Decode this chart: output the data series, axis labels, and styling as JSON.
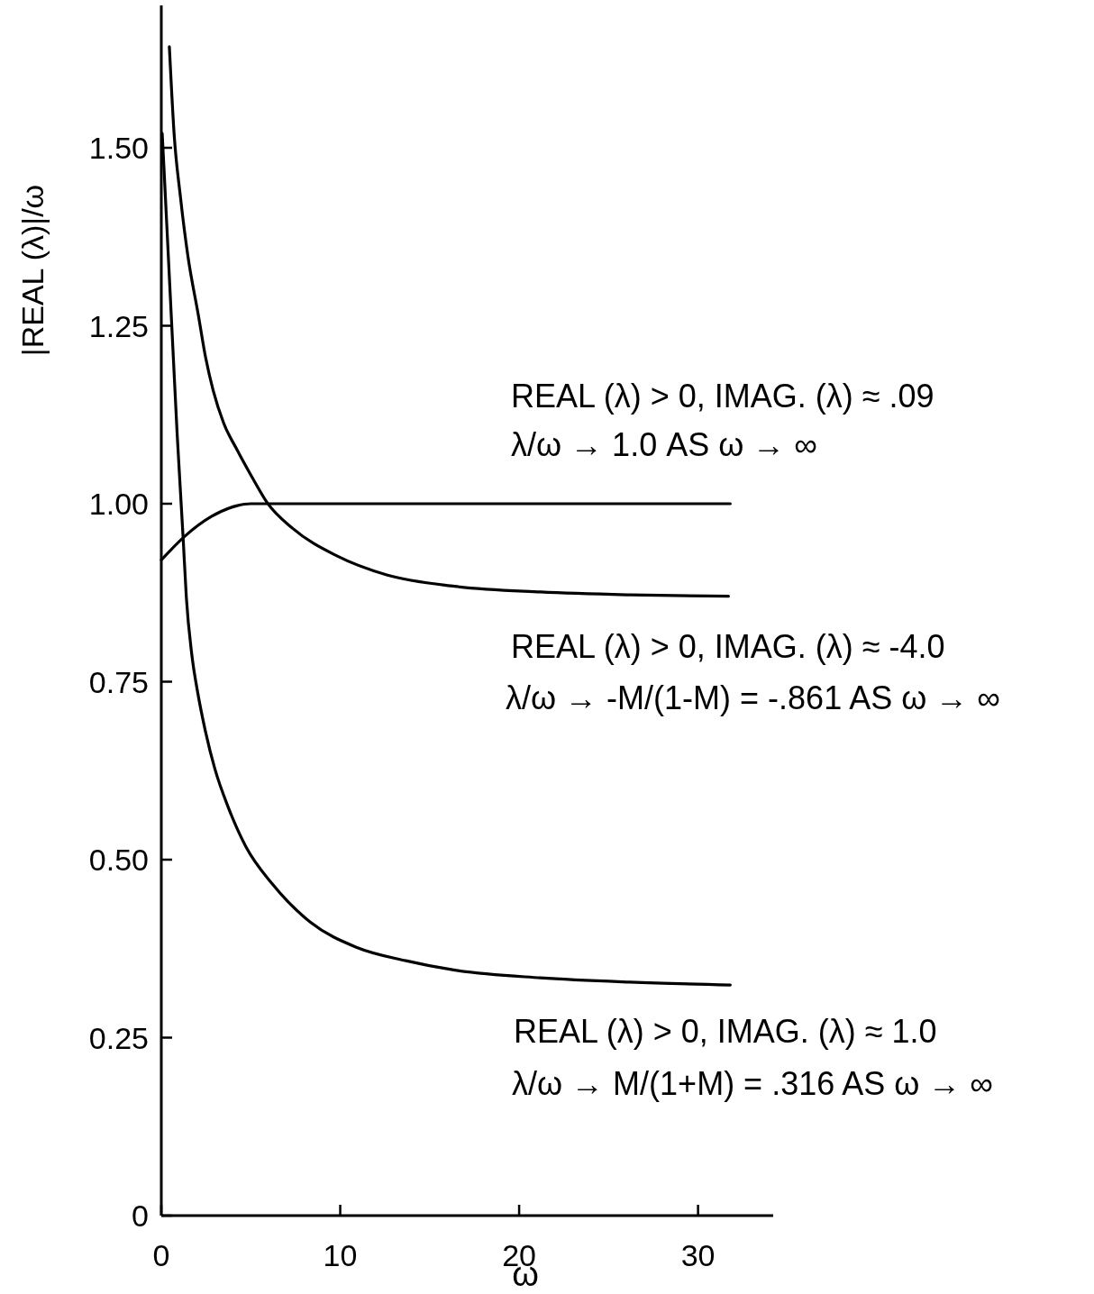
{
  "chart_data": {
    "type": "line",
    "xlabel": "ω",
    "ylabel": "|REAL (λ)|/ω",
    "xlim": [
      0,
      34.2
    ],
    "ylim": [
      0,
      1.7
    ],
    "xticks": [
      0,
      10,
      20,
      30
    ],
    "yticks": [
      0,
      0.25,
      {
        "value": 0.5,
        "label": "0.50"
      },
      0.75,
      {
        "value": 1,
        "label": "1.00"
      },
      1.25,
      {
        "value": 1.5,
        "label": "1.50"
      }
    ],
    "series": [
      {
        "color": "#000000",
        "x": [
          0,
          1.3,
          2.8,
          4.2,
          5.0,
          31.8
        ],
        "values": [
          0.921,
          0.954,
          0.982,
          0.997,
          1.0,
          1.0
        ]
      },
      {
        "color": "#000000",
        "x": [
          0.45,
          0.72,
          1.06,
          1.48,
          2.07,
          2.48,
          2.9,
          3.49,
          4.25,
          5.17,
          5.93,
          7.36,
          9.79,
          12.6,
          16.4,
          21.2,
          26.2,
          31.7
        ],
        "values": [
          1.642,
          1.518,
          1.433,
          1.349,
          1.265,
          1.205,
          1.159,
          1.113,
          1.075,
          1.033,
          1.001,
          0.965,
          0.927,
          0.9,
          0.884,
          0.876,
          0.872,
          0.87
        ]
      },
      {
        "color": "#000000",
        "x": [
          0.05,
          0.14,
          0.39,
          0.64,
          0.89,
          1.22,
          1.4,
          1.71,
          2.04,
          2.47,
          3.0,
          3.75,
          4.71,
          6.2,
          8.34,
          10.9,
          13.67,
          16.34,
          21.2,
          26.2,
          31.8
        ],
        "values": [
          1.52,
          1.476,
          1.349,
          1.222,
          1.096,
          0.952,
          0.868,
          0.787,
          0.734,
          0.68,
          0.627,
          0.573,
          0.519,
          0.466,
          0.412,
          0.377,
          0.358,
          0.345,
          0.334,
          0.328,
          0.324
        ]
      }
    ],
    "annotations": [
      "REAL (λ) > 0, IMAG. (λ) ≈ .09",
      "λ/ω → 1.0 AS ω → ∞",
      "REAL (λ) > 0, IMAG. (λ) ≈ -4.0",
      "λ/ω → -M/(1-M) = -.861 AS ω → ∞",
      "REAL (λ) > 0, IMAG. (λ) ≈ 1.0",
      "λ/ω → M/(1+M) = .316 AS ω → ∞"
    ]
  }
}
